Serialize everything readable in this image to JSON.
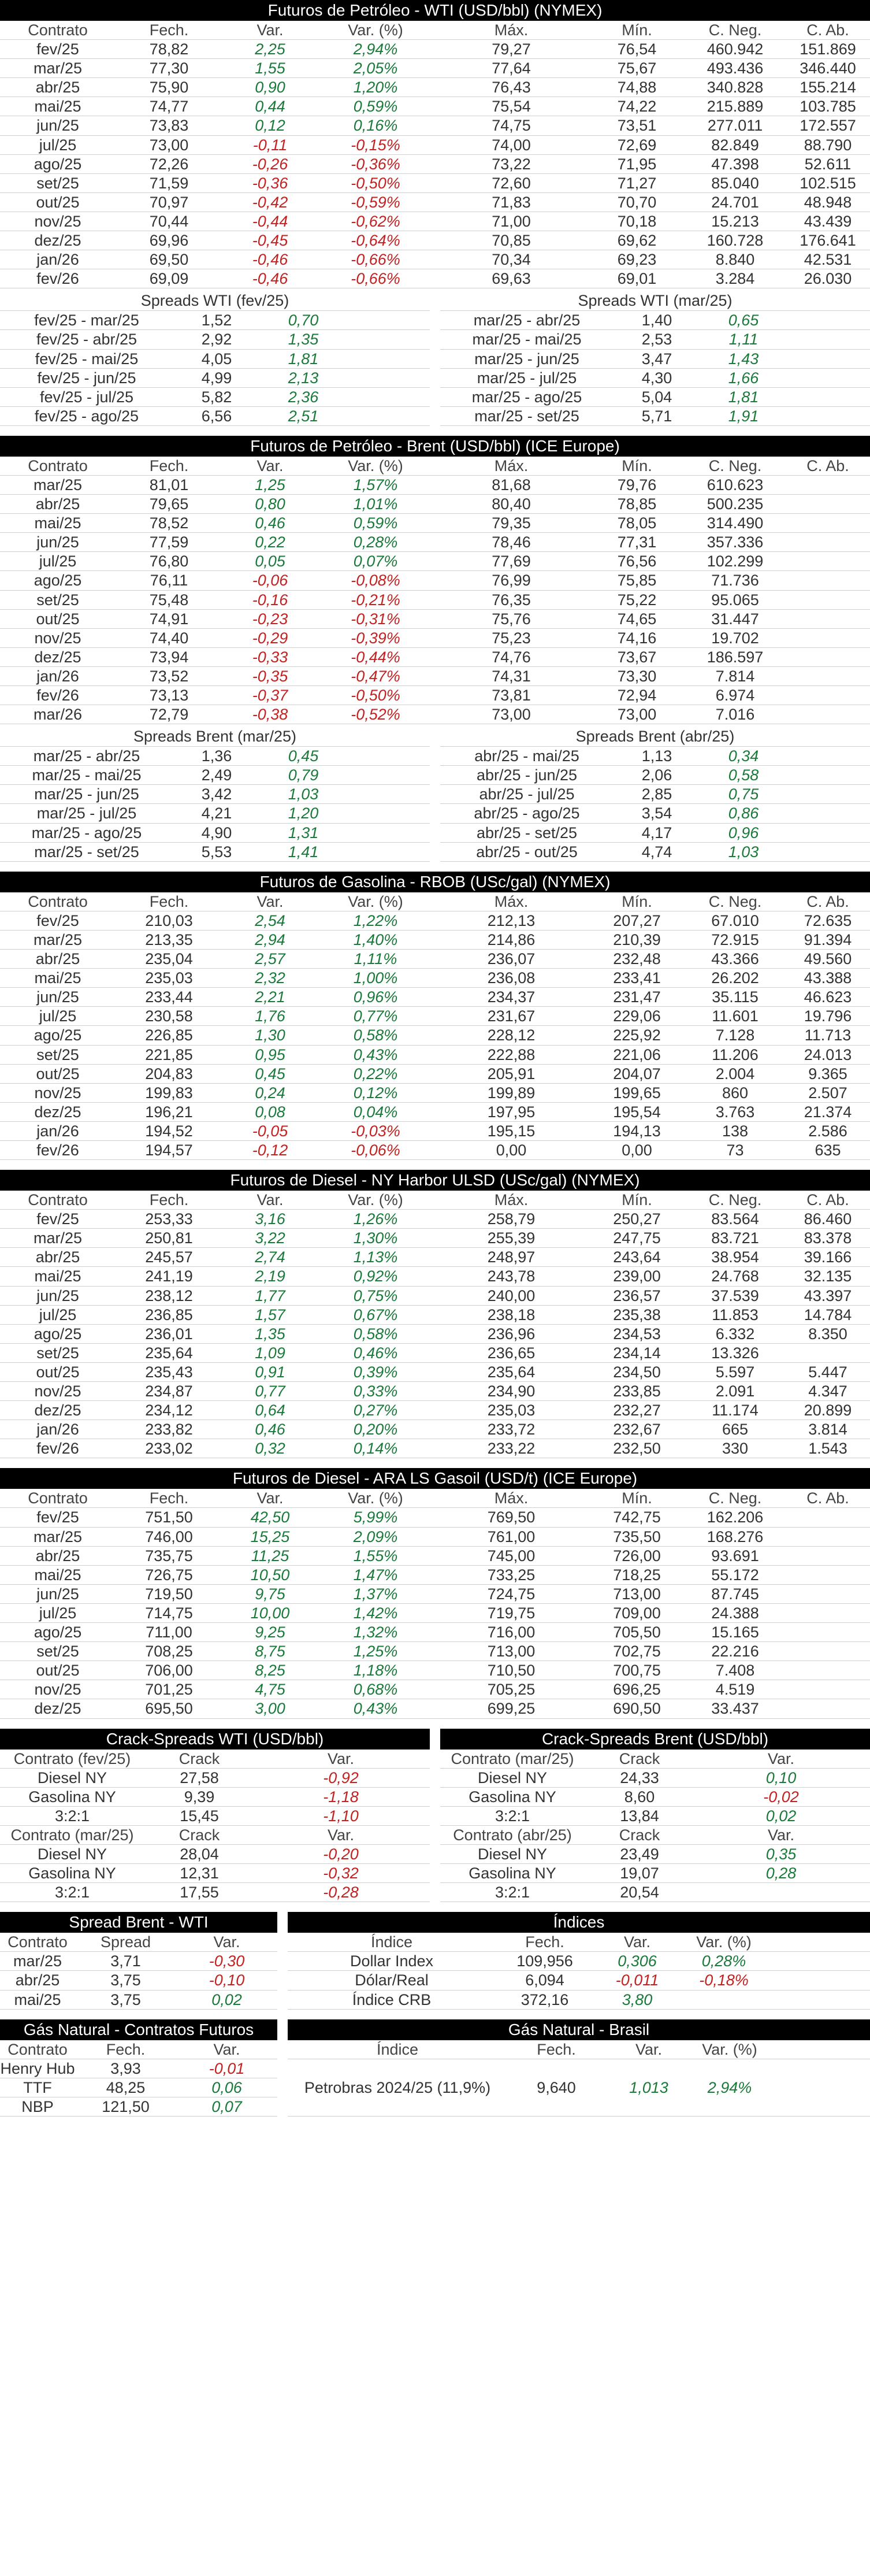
{
  "cols8": [
    "Contrato",
    "Fech.",
    "Var.",
    "Var. (%)",
    "Máx.",
    "Mín.",
    "C. Neg.",
    "C. Ab."
  ],
  "colors": {
    "positive": "#1a7a3a",
    "negative": "#c42121",
    "header_bg": "#000000"
  },
  "sections": [
    {
      "title": "Futuros de Petróleo - WTI (USD/bbl) (NYMEX)",
      "rows": [
        [
          "fev/25",
          "78,82",
          "2,25",
          "2,94%",
          "79,27",
          "76,54",
          "460.942",
          "151.869"
        ],
        [
          "mar/25",
          "77,30",
          "1,55",
          "2,05%",
          "77,64",
          "75,67",
          "493.436",
          "346.440"
        ],
        [
          "abr/25",
          "75,90",
          "0,90",
          "1,20%",
          "76,43",
          "74,88",
          "340.828",
          "155.214"
        ],
        [
          "mai/25",
          "74,77",
          "0,44",
          "0,59%",
          "75,54",
          "74,22",
          "215.889",
          "103.785"
        ],
        [
          "jun/25",
          "73,83",
          "0,12",
          "0,16%",
          "74,75",
          "73,51",
          "277.011",
          "172.557"
        ],
        [
          "jul/25",
          "73,00",
          "-0,11",
          "-0,15%",
          "74,00",
          "72,69",
          "82.849",
          "88.790"
        ],
        [
          "ago/25",
          "72,26",
          "-0,26",
          "-0,36%",
          "73,22",
          "71,95",
          "47.398",
          "52.611"
        ],
        [
          "set/25",
          "71,59",
          "-0,36",
          "-0,50%",
          "72,60",
          "71,27",
          "85.040",
          "102.515"
        ],
        [
          "out/25",
          "70,97",
          "-0,42",
          "-0,59%",
          "71,83",
          "70,70",
          "24.701",
          "48.948"
        ],
        [
          "nov/25",
          "70,44",
          "-0,44",
          "-0,62%",
          "71,00",
          "70,18",
          "15.213",
          "43.439"
        ],
        [
          "dez/25",
          "69,96",
          "-0,45",
          "-0,64%",
          "70,85",
          "69,62",
          "160.728",
          "176.641"
        ],
        [
          "jan/26",
          "69,50",
          "-0,46",
          "-0,66%",
          "70,34",
          "69,23",
          "8.840",
          "42.531"
        ],
        [
          "fev/26",
          "69,09",
          "-0,46",
          "-0,66%",
          "69,63",
          "69,01",
          "3.284",
          "26.030"
        ]
      ],
      "spreads": [
        {
          "title": "Spreads WTI (fev/25)",
          "rows": [
            [
              "fev/25 - mar/25",
              "1,52",
              "0,70"
            ],
            [
              "fev/25 - abr/25",
              "2,92",
              "1,35"
            ],
            [
              "fev/25 - mai/25",
              "4,05",
              "1,81"
            ],
            [
              "fev/25 - jun/25",
              "4,99",
              "2,13"
            ],
            [
              "fev/25 - jul/25",
              "5,82",
              "2,36"
            ],
            [
              "fev/25 - ago/25",
              "6,56",
              "2,51"
            ]
          ]
        },
        {
          "title": "Spreads WTI (mar/25)",
          "rows": [
            [
              "mar/25 - abr/25",
              "1,40",
              "0,65"
            ],
            [
              "mar/25 - mai/25",
              "2,53",
              "1,11"
            ],
            [
              "mar/25 - jun/25",
              "3,47",
              "1,43"
            ],
            [
              "mar/25 - jul/25",
              "4,30",
              "1,66"
            ],
            [
              "mar/25 - ago/25",
              "5,04",
              "1,81"
            ],
            [
              "mar/25 - set/25",
              "5,71",
              "1,91"
            ]
          ]
        }
      ]
    },
    {
      "title": "Futuros de Petróleo - Brent (USD/bbl) (ICE Europe)",
      "rows": [
        [
          "mar/25",
          "81,01",
          "1,25",
          "1,57%",
          "81,68",
          "79,76",
          "610.623",
          ""
        ],
        [
          "abr/25",
          "79,65",
          "0,80",
          "1,01%",
          "80,40",
          "78,85",
          "500.235",
          ""
        ],
        [
          "mai/25",
          "78,52",
          "0,46",
          "0,59%",
          "79,35",
          "78,05",
          "314.490",
          ""
        ],
        [
          "jun/25",
          "77,59",
          "0,22",
          "0,28%",
          "78,46",
          "77,31",
          "357.336",
          ""
        ],
        [
          "jul/25",
          "76,80",
          "0,05",
          "0,07%",
          "77,69",
          "76,56",
          "102.299",
          ""
        ],
        [
          "ago/25",
          "76,11",
          "-0,06",
          "-0,08%",
          "76,99",
          "75,85",
          "71.736",
          ""
        ],
        [
          "set/25",
          "75,48",
          "-0,16",
          "-0,21%",
          "76,35",
          "75,22",
          "95.065",
          ""
        ],
        [
          "out/25",
          "74,91",
          "-0,23",
          "-0,31%",
          "75,76",
          "74,65",
          "31.447",
          ""
        ],
        [
          "nov/25",
          "74,40",
          "-0,29",
          "-0,39%",
          "75,23",
          "74,16",
          "19.702",
          ""
        ],
        [
          "dez/25",
          "73,94",
          "-0,33",
          "-0,44%",
          "74,76",
          "73,67",
          "186.597",
          ""
        ],
        [
          "jan/26",
          "73,52",
          "-0,35",
          "-0,47%",
          "74,31",
          "73,30",
          "7.814",
          ""
        ],
        [
          "fev/26",
          "73,13",
          "-0,37",
          "-0,50%",
          "73,81",
          "72,94",
          "6.974",
          ""
        ],
        [
          "mar/26",
          "72,79",
          "-0,38",
          "-0,52%",
          "73,00",
          "73,00",
          "7.016",
          ""
        ]
      ],
      "spreads": [
        {
          "title": "Spreads Brent (mar/25)",
          "rows": [
            [
              "mar/25 - abr/25",
              "1,36",
              "0,45"
            ],
            [
              "mar/25 - mai/25",
              "2,49",
              "0,79"
            ],
            [
              "mar/25 - jun/25",
              "3,42",
              "1,03"
            ],
            [
              "mar/25 - jul/25",
              "4,21",
              "1,20"
            ],
            [
              "mar/25 - ago/25",
              "4,90",
              "1,31"
            ],
            [
              "mar/25 - set/25",
              "5,53",
              "1,41"
            ]
          ]
        },
        {
          "title": "Spreads Brent (abr/25)",
          "rows": [
            [
              "abr/25 - mai/25",
              "1,13",
              "0,34"
            ],
            [
              "abr/25 - jun/25",
              "2,06",
              "0,58"
            ],
            [
              "abr/25 - jul/25",
              "2,85",
              "0,75"
            ],
            [
              "abr/25 - ago/25",
              "3,54",
              "0,86"
            ],
            [
              "abr/25 - set/25",
              "4,17",
              "0,96"
            ],
            [
              "abr/25 - out/25",
              "4,74",
              "1,03"
            ]
          ]
        }
      ]
    },
    {
      "title": "Futuros de Gasolina - RBOB (USc/gal) (NYMEX)",
      "rows": [
        [
          "fev/25",
          "210,03",
          "2,54",
          "1,22%",
          "212,13",
          "207,27",
          "67.010",
          "72.635"
        ],
        [
          "mar/25",
          "213,35",
          "2,94",
          "1,40%",
          "214,86",
          "210,39",
          "72.915",
          "91.394"
        ],
        [
          "abr/25",
          "235,04",
          "2,57",
          "1,11%",
          "236,07",
          "232,48",
          "43.366",
          "49.560"
        ],
        [
          "mai/25",
          "235,03",
          "2,32",
          "1,00%",
          "236,08",
          "233,41",
          "26.202",
          "43.388"
        ],
        [
          "jun/25",
          "233,44",
          "2,21",
          "0,96%",
          "234,37",
          "231,47",
          "35.115",
          "46.623"
        ],
        [
          "jul/25",
          "230,58",
          "1,76",
          "0,77%",
          "231,67",
          "229,06",
          "11.601",
          "19.796"
        ],
        [
          "ago/25",
          "226,85",
          "1,30",
          "0,58%",
          "228,12",
          "225,92",
          "7.128",
          "11.713"
        ],
        [
          "set/25",
          "221,85",
          "0,95",
          "0,43%",
          "222,88",
          "221,06",
          "11.206",
          "24.013"
        ],
        [
          "out/25",
          "204,83",
          "0,45",
          "0,22%",
          "205,91",
          "204,07",
          "2.004",
          "9.365"
        ],
        [
          "nov/25",
          "199,83",
          "0,24",
          "0,12%",
          "199,89",
          "199,65",
          "860",
          "2.507"
        ],
        [
          "dez/25",
          "196,21",
          "0,08",
          "0,04%",
          "197,95",
          "195,54",
          "3.763",
          "21.374"
        ],
        [
          "jan/26",
          "194,52",
          "-0,05",
          "-0,03%",
          "195,15",
          "194,13",
          "138",
          "2.586"
        ],
        [
          "fev/26",
          "194,57",
          "-0,12",
          "-0,06%",
          "0,00",
          "0,00",
          "73",
          "635"
        ]
      ]
    },
    {
      "title": "Futuros de Diesel - NY Harbor ULSD (USc/gal) (NYMEX)",
      "rows": [
        [
          "fev/25",
          "253,33",
          "3,16",
          "1,26%",
          "258,79",
          "250,27",
          "83.564",
          "86.460"
        ],
        [
          "mar/25",
          "250,81",
          "3,22",
          "1,30%",
          "255,39",
          "247,75",
          "83.721",
          "83.378"
        ],
        [
          "abr/25",
          "245,57",
          "2,74",
          "1,13%",
          "248,97",
          "243,64",
          "38.954",
          "39.166"
        ],
        [
          "mai/25",
          "241,19",
          "2,19",
          "0,92%",
          "243,78",
          "239,00",
          "24.768",
          "32.135"
        ],
        [
          "jun/25",
          "238,12",
          "1,77",
          "0,75%",
          "240,00",
          "236,57",
          "37.539",
          "43.397"
        ],
        [
          "jul/25",
          "236,85",
          "1,57",
          "0,67%",
          "238,18",
          "235,38",
          "11.853",
          "14.784"
        ],
        [
          "ago/25",
          "236,01",
          "1,35",
          "0,58%",
          "236,96",
          "234,53",
          "6.332",
          "8.350"
        ],
        [
          "set/25",
          "235,64",
          "1,09",
          "0,46%",
          "236,65",
          "234,14",
          "13.326",
          ""
        ],
        [
          "out/25",
          "235,43",
          "0,91",
          "0,39%",
          "235,64",
          "234,50",
          "5.597",
          "5.447"
        ],
        [
          "nov/25",
          "234,87",
          "0,77",
          "0,33%",
          "234,90",
          "233,85",
          "2.091",
          "4.347"
        ],
        [
          "dez/25",
          "234,12",
          "0,64",
          "0,27%",
          "235,03",
          "232,27",
          "11.174",
          "20.899"
        ],
        [
          "jan/26",
          "233,82",
          "0,46",
          "0,20%",
          "233,72",
          "232,67",
          "665",
          "3.814"
        ],
        [
          "fev/26",
          "233,02",
          "0,32",
          "0,14%",
          "233,22",
          "232,50",
          "330",
          "1.543"
        ]
      ]
    },
    {
      "title": "Futuros de Diesel - ARA LS Gasoil (USD/t) (ICE Europe)",
      "rows": [
        [
          "fev/25",
          "751,50",
          "42,50",
          "5,99%",
          "769,50",
          "742,75",
          "162.206",
          ""
        ],
        [
          "mar/25",
          "746,00",
          "15,25",
          "2,09%",
          "761,00",
          "735,50",
          "168.276",
          ""
        ],
        [
          "abr/25",
          "735,75",
          "11,25",
          "1,55%",
          "745,00",
          "726,00",
          "93.691",
          ""
        ],
        [
          "mai/25",
          "726,75",
          "10,50",
          "1,47%",
          "733,25",
          "718,25",
          "55.172",
          ""
        ],
        [
          "jun/25",
          "719,50",
          "9,75",
          "1,37%",
          "724,75",
          "713,00",
          "87.745",
          ""
        ],
        [
          "jul/25",
          "714,75",
          "10,00",
          "1,42%",
          "719,75",
          "709,00",
          "24.388",
          ""
        ],
        [
          "ago/25",
          "711,00",
          "9,25",
          "1,32%",
          "716,00",
          "705,50",
          "15.165",
          ""
        ],
        [
          "set/25",
          "708,25",
          "8,75",
          "1,25%",
          "713,00",
          "702,75",
          "22.216",
          ""
        ],
        [
          "out/25",
          "706,00",
          "8,25",
          "1,18%",
          "710,50",
          "700,75",
          "7.408",
          ""
        ],
        [
          "nov/25",
          "701,25",
          "4,75",
          "0,68%",
          "705,25",
          "696,25",
          "4.519",
          ""
        ],
        [
          "dez/25",
          "695,50",
          "3,00",
          "0,43%",
          "699,25",
          "690,50",
          "33.437",
          ""
        ]
      ]
    }
  ],
  "crack": {
    "wti": {
      "title": "Crack-Spreads WTI (USD/bbl)",
      "h1": [
        "Contrato (fev/25)",
        "Crack",
        "Var."
      ],
      "r1": [
        [
          "Diesel NY",
          "27,58",
          "-0,92"
        ],
        [
          "Gasolina NY",
          "9,39",
          "-1,18"
        ],
        [
          "3:2:1",
          "15,45",
          "-1,10"
        ]
      ],
      "h2": [
        "Contrato (mar/25)",
        "Crack",
        "Var."
      ],
      "r2": [
        [
          "Diesel NY",
          "28,04",
          "-0,20"
        ],
        [
          "Gasolina NY",
          "12,31",
          "-0,32"
        ],
        [
          "3:2:1",
          "17,55",
          "-0,28"
        ]
      ]
    },
    "brent": {
      "title": "Crack-Spreads Brent (USD/bbl)",
      "h1": [
        "Contrato (mar/25)",
        "Crack",
        "Var."
      ],
      "r1": [
        [
          "Diesel NY",
          "24,33",
          "0,10"
        ],
        [
          "Gasolina NY",
          "8,60",
          "-0,02"
        ],
        [
          "3:2:1",
          "13,84",
          "0,02"
        ]
      ],
      "h2": [
        "Contrato (abr/25)",
        "Crack",
        "Var."
      ],
      "r2": [
        [
          "Diesel NY",
          "23,49",
          "0,35"
        ],
        [
          "Gasolina NY",
          "19,07",
          "0,28"
        ],
        [
          "3:2:1",
          "20,54",
          ""
        ]
      ]
    }
  },
  "spread_bw": {
    "title": "Spread Brent - WTI",
    "head": [
      "Contrato",
      "Spread",
      "Var."
    ],
    "rows": [
      [
        "mar/25",
        "3,71",
        "-0,30"
      ],
      [
        "abr/25",
        "3,75",
        "-0,10"
      ],
      [
        "mai/25",
        "3,75",
        "0,02"
      ]
    ]
  },
  "indices": {
    "title": "Índices",
    "head": [
      "Índice",
      "Fech.",
      "Var.",
      "Var. (%)"
    ],
    "rows": [
      [
        "Dollar Index",
        "109,956",
        "0,306",
        "0,28%"
      ],
      [
        "Dólar/Real",
        "6,094",
        "-0,011",
        "-0,18%"
      ],
      [
        "Índice CRB",
        "372,16",
        "3,80",
        ""
      ]
    ]
  },
  "gas_futures": {
    "title": "Gás Natural - Contratos Futuros",
    "head": [
      "Contrato",
      "Fech.",
      "Var."
    ],
    "rows": [
      [
        "Henry Hub",
        "3,93",
        "-0,01"
      ],
      [
        "TTF",
        "48,25",
        "0,06"
      ],
      [
        "NBP",
        "121,50",
        "0,07"
      ]
    ]
  },
  "gas_brasil": {
    "title": "Gás Natural - Brasil",
    "head": [
      "Índice",
      "Fech.",
      "Var.",
      "Var. (%)"
    ],
    "rows": [
      [
        "Petrobras 2024/25 (11,9%)",
        "9,640",
        "1,013",
        "2,94%"
      ]
    ]
  }
}
